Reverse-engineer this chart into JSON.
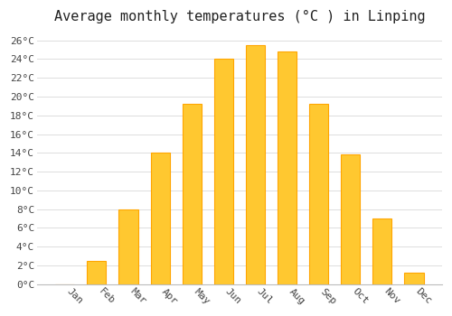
{
  "title": "Average monthly temperatures (°C ) in Linping",
  "months": [
    "Jan",
    "Feb",
    "Mar",
    "Apr",
    "May",
    "Jun",
    "Jul",
    "Aug",
    "Sep",
    "Oct",
    "Nov",
    "Dec"
  ],
  "values": [
    0,
    2.5,
    8,
    14,
    19.2,
    24,
    25.5,
    24.8,
    19.2,
    13.8,
    7,
    1.2
  ],
  "bar_color": "#FFC830",
  "bar_edge_color": "#FFA500",
  "background_color": "#FFFFFF",
  "grid_color": "#DDDDDD",
  "ylim": [
    0,
    27
  ],
  "yticks": [
    0,
    2,
    4,
    6,
    8,
    10,
    12,
    14,
    16,
    18,
    20,
    22,
    24,
    26
  ],
  "ytick_labels": [
    "0°C",
    "2°C",
    "4°C",
    "6°C",
    "8°C",
    "10°C",
    "12°C",
    "14°C",
    "16°C",
    "18°C",
    "20°C",
    "22°C",
    "24°C",
    "26°C"
  ],
  "title_fontsize": 11,
  "tick_fontsize": 8,
  "font_family": "monospace",
  "bar_width": 0.6,
  "figsize": [
    5.0,
    3.5
  ],
  "dpi": 100
}
